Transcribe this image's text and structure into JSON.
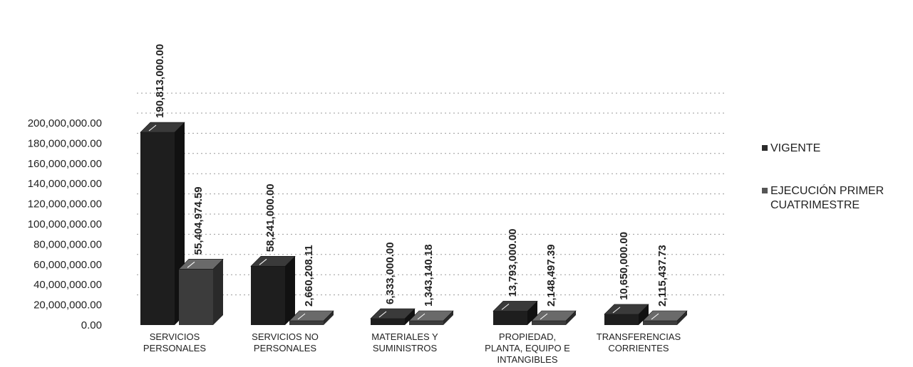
{
  "chart_data": {
    "type": "bar",
    "style": "3d-clustered-column",
    "categories": [
      [
        "SERVICIOS",
        "PERSONALES"
      ],
      [
        "SERVICIOS NO",
        "PERSONALES"
      ],
      [
        "MATERIALES Y",
        "SUMINISTROS"
      ],
      [
        "PROPIEDAD,",
        "PLANTA, EQUIPO E",
        "INTANGIBLES"
      ],
      [
        "TRANSFERENCIAS",
        "CORRIENTES"
      ]
    ],
    "series": [
      {
        "name": "VIGENTE",
        "values": [
          190813000.0,
          58241000.0,
          6333000.0,
          13793000.0,
          10650000.0
        ],
        "labels": [
          "190,813,000.00",
          "58,241,000.00",
          "6,333,000.00",
          "13,793,000.00",
          "10,650,000.00"
        ],
        "color": "#2b2b2b"
      },
      {
        "name": [
          "EJECUCIÓN PRIMER",
          "CUATRIMESTRE"
        ],
        "values": [
          55404974.59,
          2660208.11,
          1343140.18,
          2148497.39,
          2115437.73
        ],
        "labels": [
          "55,404,974.59",
          "2,660,208.11",
          "1,343,140.18",
          "2,148,497.39",
          "2,115,437.73"
        ],
        "color": "#4a4a4a"
      }
    ],
    "y_ticks": [
      "0.00",
      "20,000,000.00",
      "40,000,000.00",
      "60,000,000.00",
      "80,000,000.00",
      "100,000,000.00",
      "120,000,000.00",
      "140,000,000.00",
      "160,000,000.00",
      "180,000,000.00",
      "200,000,000.00"
    ],
    "ylim": [
      0,
      200000000
    ],
    "grid": true,
    "legend": "right"
  }
}
